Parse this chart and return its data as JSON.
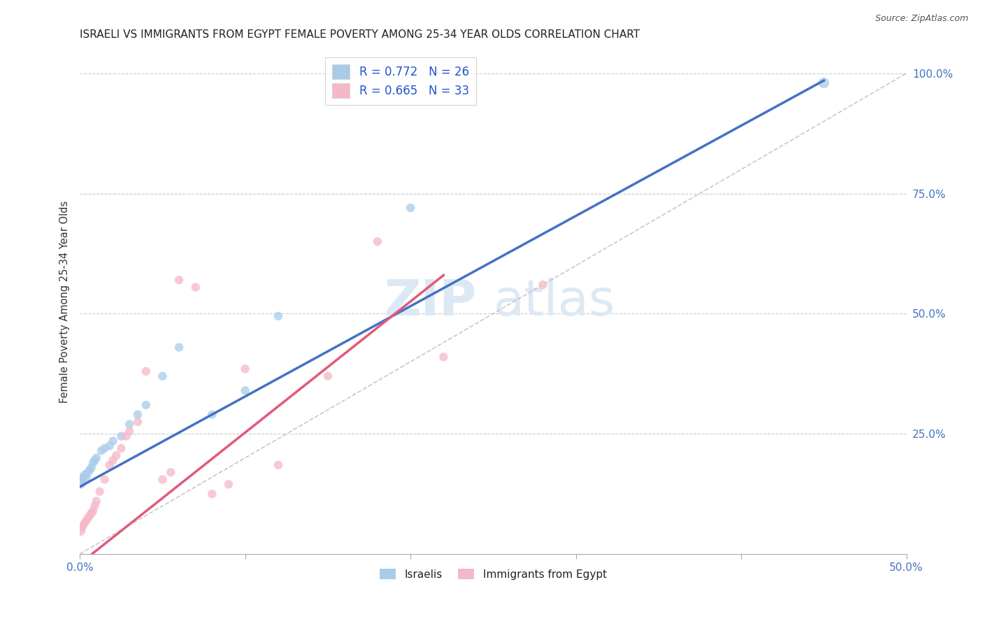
{
  "title": "ISRAELI VS IMMIGRANTS FROM EGYPT FEMALE POVERTY AMONG 25-34 YEAR OLDS CORRELATION CHART",
  "source": "Source: ZipAtlas.com",
  "ylabel": "Female Poverty Among 25-34 Year Olds",
  "xmin": 0.0,
  "xmax": 0.5,
  "ymin": 0.0,
  "ymax": 1.05,
  "R_blue": 0.772,
  "N_blue": 26,
  "R_pink": 0.665,
  "N_pink": 33,
  "legend_label1": "R = 0.772   N = 26",
  "legend_label2": "R = 0.665   N = 33",
  "legend_label_bottom1": "Israelis",
  "legend_label_bottom2": "Immigrants from Egypt",
  "blue_color": "#a8cce8",
  "pink_color": "#f4b8c8",
  "blue_line_color": "#4472C4",
  "pink_line_color": "#e05a7a",
  "axis_tick_color": "#4472C4",
  "title_color": "#222222",
  "grid_color": "#cccccc",
  "watermark_color": "#dce9f5",
  "israelis_x": [
    0.0,
    0.001,
    0.002,
    0.003,
    0.004,
    0.005,
    0.006,
    0.007,
    0.008,
    0.009,
    0.01,
    0.013,
    0.015,
    0.018,
    0.02,
    0.025,
    0.03,
    0.035,
    0.04,
    0.05,
    0.06,
    0.08,
    0.1,
    0.12,
    0.2,
    0.45
  ],
  "israelis_y": [
    0.15,
    0.155,
    0.16,
    0.165,
    0.16,
    0.17,
    0.175,
    0.18,
    0.19,
    0.195,
    0.2,
    0.215,
    0.22,
    0.225,
    0.235,
    0.245,
    0.27,
    0.29,
    0.31,
    0.37,
    0.43,
    0.29,
    0.34,
    0.495,
    0.72,
    0.98
  ],
  "israelis_sizes": [
    200,
    80,
    80,
    80,
    80,
    80,
    80,
    80,
    80,
    80,
    80,
    80,
    80,
    80,
    80,
    80,
    80,
    80,
    80,
    80,
    80,
    80,
    80,
    80,
    80,
    120
  ],
  "egypt_x": [
    0.0,
    0.001,
    0.002,
    0.003,
    0.004,
    0.005,
    0.006,
    0.007,
    0.008,
    0.009,
    0.01,
    0.012,
    0.015,
    0.018,
    0.02,
    0.022,
    0.025,
    0.028,
    0.03,
    0.035,
    0.04,
    0.05,
    0.055,
    0.06,
    0.07,
    0.08,
    0.09,
    0.1,
    0.12,
    0.15,
    0.18,
    0.22,
    0.28
  ],
  "egypt_y": [
    0.05,
    0.055,
    0.06,
    0.065,
    0.07,
    0.075,
    0.08,
    0.085,
    0.09,
    0.1,
    0.11,
    0.13,
    0.155,
    0.185,
    0.195,
    0.205,
    0.22,
    0.245,
    0.255,
    0.275,
    0.38,
    0.155,
    0.17,
    0.57,
    0.555,
    0.125,
    0.145,
    0.385,
    0.185,
    0.37,
    0.65,
    0.41,
    0.56
  ],
  "egypt_sizes": [
    150,
    80,
    80,
    80,
    80,
    80,
    80,
    80,
    80,
    80,
    80,
    80,
    80,
    80,
    80,
    80,
    80,
    80,
    80,
    80,
    80,
    80,
    80,
    80,
    80,
    80,
    80,
    80,
    80,
    80,
    80,
    80,
    80
  ],
  "blue_line_x0": 0.0,
  "blue_line_y0": 0.14,
  "blue_line_x1": 0.45,
  "blue_line_y1": 0.985,
  "pink_line_x0": 0.0,
  "pink_line_y0": -0.02,
  "pink_line_x1": 0.22,
  "pink_line_y1": 0.58
}
